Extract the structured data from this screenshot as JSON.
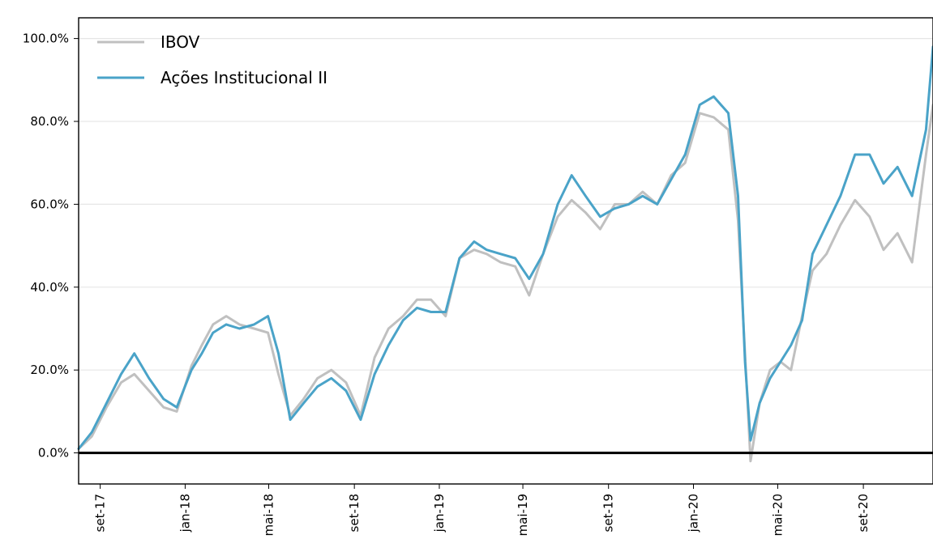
{
  "chart_data": {
    "type": "line",
    "title": "",
    "xlabel": "",
    "ylabel": "",
    "ylim": [
      -7.5,
      105
    ],
    "y_ticks": [
      0,
      20,
      40,
      60,
      80,
      100
    ],
    "y_tick_labels": [
      "0.0%",
      "20.0%",
      "40.0%",
      "60.0%",
      "80.0%",
      "100.0%"
    ],
    "x_ticks": [
      "2017-09-01",
      "2018-01-01",
      "2018-05-01",
      "2018-09-01",
      "2019-01-01",
      "2019-05-01",
      "2019-09-01",
      "2020-01-01",
      "2020-05-01",
      "2020-09-01"
    ],
    "x_tick_labels": [
      "set-17",
      "jan-18",
      "mai-18",
      "set-18",
      "jan-19",
      "mai-19",
      "set-19",
      "jan-20",
      "mai-20",
      "set-20"
    ],
    "xlim": [
      "2017-08-01",
      "2020-12-10"
    ],
    "grid": "horizontal",
    "legend_position": "top-left",
    "series": [
      {
        "name": "IBOV",
        "color": "#c0c0c0",
        "x": [
          "2017-08-01",
          "2017-08-20",
          "2017-09-10",
          "2017-10-01",
          "2017-10-20",
          "2017-11-10",
          "2017-12-01",
          "2017-12-20",
          "2018-01-10",
          "2018-01-25",
          "2018-02-10",
          "2018-03-01",
          "2018-03-20",
          "2018-04-10",
          "2018-04-30",
          "2018-05-15",
          "2018-06-01",
          "2018-06-20",
          "2018-07-10",
          "2018-07-30",
          "2018-08-20",
          "2018-09-10",
          "2018-09-30",
          "2018-10-20",
          "2018-11-10",
          "2018-11-30",
          "2018-12-20",
          "2019-01-10",
          "2019-01-30",
          "2019-02-20",
          "2019-03-10",
          "2019-03-30",
          "2019-04-20",
          "2019-05-10",
          "2019-05-30",
          "2019-06-20",
          "2019-07-10",
          "2019-07-30",
          "2019-08-20",
          "2019-09-10",
          "2019-09-30",
          "2019-10-20",
          "2019-11-10",
          "2019-11-30",
          "2019-12-20",
          "2020-01-10",
          "2020-01-30",
          "2020-02-20",
          "2020-03-05",
          "2020-03-15",
          "2020-03-23",
          "2020-04-05",
          "2020-04-20",
          "2020-05-05",
          "2020-05-20",
          "2020-06-05",
          "2020-06-20",
          "2020-07-10",
          "2020-07-30",
          "2020-08-20",
          "2020-09-10",
          "2020-09-30",
          "2020-10-20",
          "2020-11-10",
          "2020-11-30",
          "2020-12-10"
        ],
        "y": [
          1,
          4,
          11,
          17,
          19,
          15,
          11,
          10,
          21,
          26,
          31,
          33,
          31,
          30,
          29,
          19,
          9,
          13,
          18,
          20,
          17,
          9,
          23,
          30,
          33,
          37,
          37,
          33,
          47,
          49,
          48,
          46,
          45,
          38,
          48,
          57,
          61,
          58,
          54,
          60,
          60,
          63,
          60,
          67,
          70,
          82,
          81,
          78,
          56,
          24,
          -2,
          12,
          20,
          22,
          20,
          33,
          44,
          48,
          55,
          61,
          57,
          49,
          53,
          46,
          72,
          84
        ]
      },
      {
        "name": "Ações Institucional II",
        "color": "#4aa3c8",
        "x": [
          "2017-08-01",
          "2017-08-20",
          "2017-09-10",
          "2017-10-01",
          "2017-10-20",
          "2017-11-10",
          "2017-12-01",
          "2017-12-20",
          "2018-01-10",
          "2018-01-25",
          "2018-02-10",
          "2018-03-01",
          "2018-03-20",
          "2018-04-10",
          "2018-04-30",
          "2018-05-15",
          "2018-06-01",
          "2018-06-20",
          "2018-07-10",
          "2018-07-30",
          "2018-08-20",
          "2018-09-10",
          "2018-09-30",
          "2018-10-20",
          "2018-11-10",
          "2018-11-30",
          "2018-12-20",
          "2019-01-10",
          "2019-01-30",
          "2019-02-20",
          "2019-03-10",
          "2019-03-30",
          "2019-04-20",
          "2019-05-10",
          "2019-05-30",
          "2019-06-20",
          "2019-07-10",
          "2019-07-30",
          "2019-08-20",
          "2019-09-10",
          "2019-09-30",
          "2019-10-20",
          "2019-11-10",
          "2019-11-30",
          "2019-12-20",
          "2020-01-10",
          "2020-01-30",
          "2020-02-20",
          "2020-03-05",
          "2020-03-15",
          "2020-03-23",
          "2020-04-05",
          "2020-04-20",
          "2020-05-05",
          "2020-05-20",
          "2020-06-05",
          "2020-06-20",
          "2020-07-10",
          "2020-07-30",
          "2020-08-20",
          "2020-09-10",
          "2020-09-30",
          "2020-10-20",
          "2020-11-10",
          "2020-11-30",
          "2020-12-10"
        ],
        "y": [
          1,
          5,
          12,
          19,
          24,
          18,
          13,
          11,
          20,
          24,
          29,
          31,
          30,
          31,
          33,
          24,
          8,
          12,
          16,
          18,
          15,
          8,
          19,
          26,
          32,
          35,
          34,
          34,
          47,
          51,
          49,
          48,
          47,
          42,
          48,
          60,
          67,
          62,
          57,
          59,
          60,
          62,
          60,
          66,
          72,
          84,
          86,
          82,
          62,
          22,
          3,
          12,
          18,
          22,
          26,
          32,
          48,
          55,
          62,
          72,
          72,
          65,
          69,
          62,
          78,
          98
        ]
      }
    ]
  }
}
